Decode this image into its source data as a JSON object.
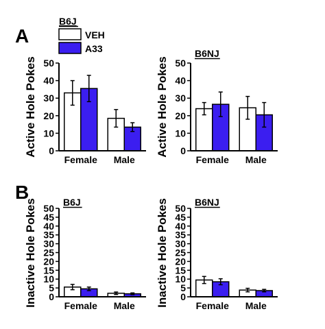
{
  "panel_labels": {
    "a": "A",
    "b": "B"
  },
  "legend": {
    "group": "B6J",
    "items": [
      {
        "label": "VEH",
        "color": "#ffffff"
      },
      {
        "label": "A33",
        "color": "#3b1ef0"
      }
    ]
  },
  "colors": {
    "VEH": "#ffffff",
    "A33": "#3b1ef0",
    "axis": "#000000"
  },
  "chart_data": [
    {
      "type": "bar",
      "title": "",
      "strain": "",
      "categories": [
        "Female",
        "Male"
      ],
      "ylabel": "Active Hole Pokes",
      "ylim": [
        0,
        50
      ],
      "yticks": [
        0,
        10,
        20,
        30,
        40,
        50
      ],
      "series": [
        {
          "name": "VEH",
          "values": [
            33,
            18.5
          ],
          "errors": [
            7,
            5
          ]
        },
        {
          "name": "A33",
          "values": [
            35.5,
            13.5
          ],
          "errors": [
            7.5,
            2.5
          ]
        }
      ]
    },
    {
      "type": "bar",
      "title": "B6NJ",
      "strain": "B6NJ",
      "categories": [
        "Female",
        "Male"
      ],
      "ylabel": "Active Hole Pokes",
      "ylim": [
        0,
        50
      ],
      "yticks": [
        0,
        10,
        20,
        30,
        40,
        50
      ],
      "series": [
        {
          "name": "VEH",
          "values": [
            24,
            24.5
          ],
          "errors": [
            3.5,
            6.5
          ]
        },
        {
          "name": "A33",
          "values": [
            26.5,
            20.5
          ],
          "errors": [
            7,
            7
          ]
        }
      ]
    },
    {
      "type": "bar",
      "title": "B6J",
      "strain": "B6J",
      "categories": [
        "Female",
        "Male"
      ],
      "ylabel": "Inactive Hole Pokes",
      "ylim": [
        0,
        50
      ],
      "yticks": [
        0,
        5,
        10,
        15,
        20,
        25,
        30,
        35,
        40,
        45,
        50
      ],
      "series": [
        {
          "name": "VEH",
          "values": [
            5.5,
            2
          ],
          "errors": [
            1.5,
            0.7
          ]
        },
        {
          "name": "A33",
          "values": [
            4.5,
            1.7
          ],
          "errors": [
            1,
            0.5
          ]
        }
      ]
    },
    {
      "type": "bar",
      "title": "B6NJ",
      "strain": "B6NJ",
      "categories": [
        "Female",
        "Male"
      ],
      "ylabel": "Inactive Hole Pokes",
      "ylim": [
        0,
        50
      ],
      "yticks": [
        0,
        5,
        10,
        15,
        20,
        25,
        30,
        35,
        40,
        45,
        50
      ],
      "series": [
        {
          "name": "VEH",
          "values": [
            9.5,
            3.8
          ],
          "errors": [
            2,
            1
          ]
        },
        {
          "name": "A33",
          "values": [
            8.5,
            3.5
          ],
          "errors": [
            1.7,
            0.7
          ]
        }
      ]
    }
  ]
}
